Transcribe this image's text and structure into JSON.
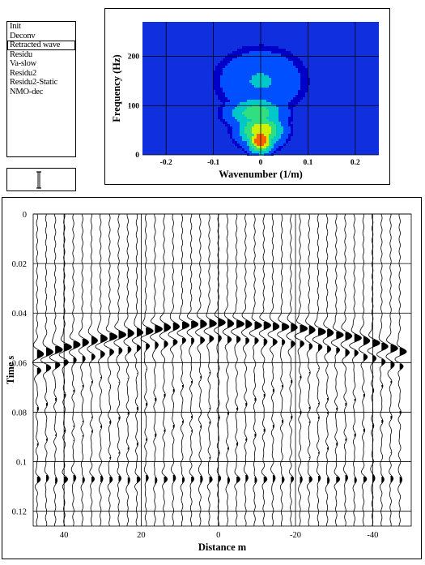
{
  "process_list": {
    "items": [
      {
        "label": "Init",
        "selected": false
      },
      {
        "label": "Deconv",
        "selected": false
      },
      {
        "label": "Retracted wave",
        "selected": true
      },
      {
        "label": "Residu",
        "selected": false
      },
      {
        "label": "Va-slow",
        "selected": false
      },
      {
        "label": "Residu2",
        "selected": false
      },
      {
        "label": "Residu2-Static",
        "selected": false
      },
      {
        "label": "NMO-dec",
        "selected": false
      }
    ]
  },
  "slider": {
    "icon": "i-beam-icon"
  },
  "chart_data": [
    {
      "type": "heatmap",
      "xlabel": "Wavenumber (1/m)",
      "ylabel": "Frequency (Hz)",
      "x_ticks": [
        "-0.2",
        "-0.1",
        "0",
        "0.1",
        "0.2"
      ],
      "x_tick_values": [
        -0.2,
        -0.1,
        0,
        0.1,
        0.2
      ],
      "y_ticks": [
        "0",
        "100",
        "200"
      ],
      "y_tick_values": [
        0,
        100,
        200
      ],
      "xlim": [
        -0.25,
        0.25
      ],
      "ylim": [
        0,
        270
      ],
      "grid": true,
      "colormap": [
        "#0000c8",
        "#0050ff",
        "#00c8c8",
        "#30e080",
        "#d0f000",
        "#ff6000"
      ],
      "background_color": "#1030e0",
      "energy_blobs": [
        {
          "k": -0.01,
          "f": 85,
          "sigma_k": 0.045,
          "sigma_f": 25,
          "level": 0.6
        },
        {
          "k": 0.0,
          "f": 30,
          "sigma_k": 0.02,
          "sigma_f": 20,
          "level": 1.0
        },
        {
          "k": 0.0,
          "f": 50,
          "sigma_k": 0.035,
          "sigma_f": 25,
          "level": 0.8
        },
        {
          "k": 0.0,
          "f": 150,
          "sigma_k": 0.07,
          "sigma_f": 50,
          "level": 0.35
        }
      ]
    },
    {
      "type": "seismic-wiggle",
      "xlabel": "Distance m",
      "ylabel": "Time s",
      "x_ticks": [
        "40",
        "20",
        "0",
        "-20",
        "-40"
      ],
      "x_tick_values": [
        40,
        20,
        0,
        -20,
        -40
      ],
      "y_ticks": [
        "0",
        "0.02",
        "0.04",
        "0.06",
        "0.08",
        "0.1",
        "0.12"
      ],
      "y_tick_values": [
        0,
        0.02,
        0.04,
        0.06,
        0.08,
        0.1,
        0.12
      ],
      "xlim": [
        48,
        -50
      ],
      "ylim": [
        0,
        0.126
      ],
      "grid": true,
      "trace_offsets_start": 47,
      "trace_offsets_end": -47,
      "trace_count": 41,
      "event_times_s": [
        {
          "offset": 48,
          "t": 0.057
        },
        {
          "offset": 30,
          "t": 0.05
        },
        {
          "offset": 10,
          "t": 0.045
        },
        {
          "offset": 0,
          "t": 0.044
        },
        {
          "offset": -20,
          "t": 0.046
        },
        {
          "offset": -35,
          "t": 0.05
        },
        {
          "offset": -48,
          "t": 0.056
        }
      ],
      "secondary_event_t": 0.107
    }
  ]
}
